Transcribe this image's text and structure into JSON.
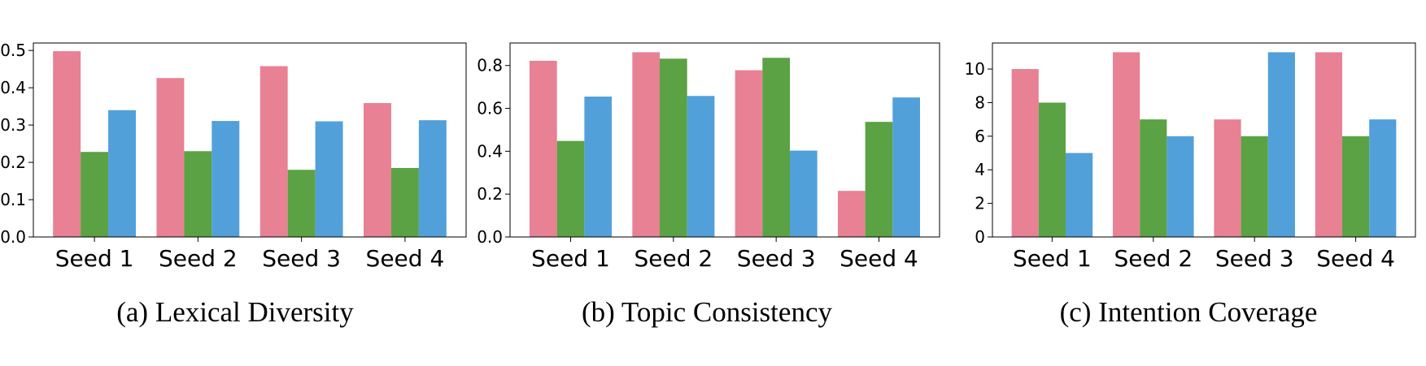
{
  "colors": {
    "pink": "#e78193",
    "green": "#5aa244",
    "blue": "#52a0da"
  },
  "chart_data": [
    {
      "type": "bar",
      "caption": "(a) Lexical Diversity",
      "categories": [
        "Seed 1",
        "Seed 2",
        "Seed 3",
        "Seed 4"
      ],
      "series": [
        {
          "color": "pink",
          "values": [
            0.498,
            0.426,
            0.458,
            0.359
          ]
        },
        {
          "color": "green",
          "values": [
            0.228,
            0.23,
            0.18,
            0.185
          ]
        },
        {
          "color": "blue",
          "values": [
            0.34,
            0.311,
            0.31,
            0.313
          ]
        }
      ],
      "ylim": [
        0,
        0.52
      ],
      "yticks": [
        0.0,
        0.1,
        0.2,
        0.3,
        0.4,
        0.5
      ],
      "ytick_labels": [
        "0.0",
        "0.1",
        "0.2",
        "0.3",
        "0.4",
        "0.5"
      ],
      "grid": false
    },
    {
      "type": "bar",
      "caption": "(b) Topic Consistency",
      "categories": [
        "Seed 1",
        "Seed 2",
        "Seed 3",
        "Seed 4"
      ],
      "series": [
        {
          "color": "pink",
          "values": [
            0.822,
            0.862,
            0.778,
            0.215
          ]
        },
        {
          "color": "green",
          "values": [
            0.448,
            0.832,
            0.836,
            0.537
          ]
        },
        {
          "color": "blue",
          "values": [
            0.655,
            0.658,
            0.403,
            0.651
          ]
        }
      ],
      "ylim": [
        0,
        0.905
      ],
      "yticks": [
        0.0,
        0.2,
        0.4,
        0.6,
        0.8
      ],
      "ytick_labels": [
        "0.0",
        "0.2",
        "0.4",
        "0.6",
        "0.8"
      ],
      "grid": false
    },
    {
      "type": "bar",
      "caption": "(c) Intention Coverage",
      "categories": [
        "Seed 1",
        "Seed 2",
        "Seed 3",
        "Seed 4"
      ],
      "series": [
        {
          "color": "pink",
          "values": [
            10,
            11,
            7,
            11
          ]
        },
        {
          "color": "green",
          "values": [
            8,
            7,
            6,
            6
          ]
        },
        {
          "color": "blue",
          "values": [
            5,
            6,
            11,
            7
          ]
        }
      ],
      "ylim": [
        0,
        11.55
      ],
      "yticks": [
        0,
        2,
        4,
        6,
        8,
        10
      ],
      "ytick_labels": [
        "0",
        "2",
        "4",
        "6",
        "8",
        "10"
      ],
      "grid": false
    }
  ]
}
